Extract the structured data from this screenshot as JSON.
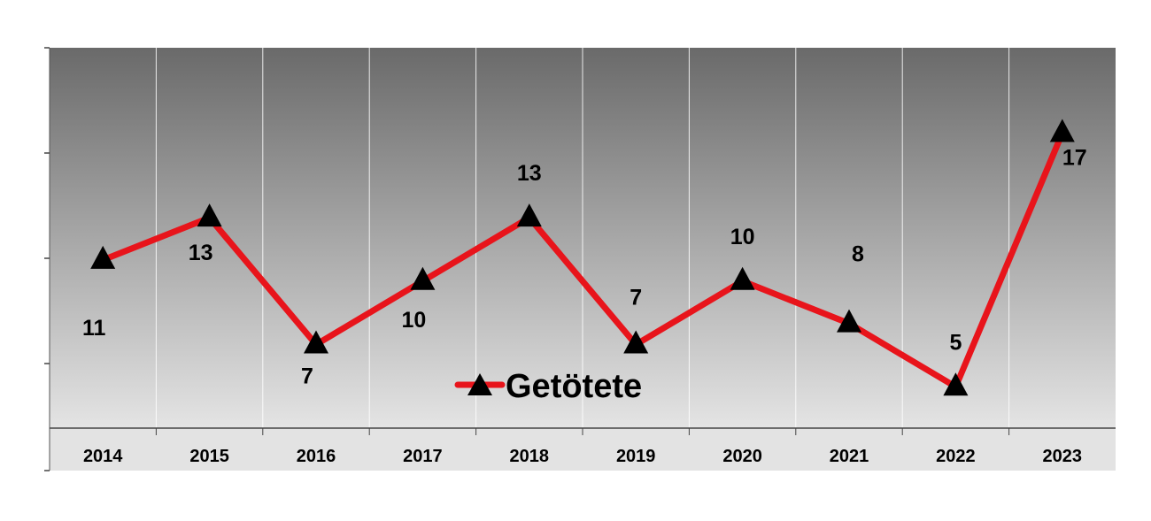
{
  "chart_data": {
    "type": "line",
    "categories": [
      "2014",
      "2015",
      "2016",
      "2017",
      "2018",
      "2019",
      "2020",
      "2021",
      "2022",
      "2023"
    ],
    "series": [
      {
        "name": "Getötete",
        "values": [
          11,
          13,
          7,
          10,
          13,
          7,
          10,
          8,
          5,
          17
        ]
      }
    ],
    "ylim": [
      0,
      18
    ],
    "grid": "vertical",
    "legend_position": "bottom-center",
    "line_color": "#e8141b",
    "marker": "triangle",
    "marker_color": "#000000",
    "background": "gradient dark gray to light gray"
  }
}
